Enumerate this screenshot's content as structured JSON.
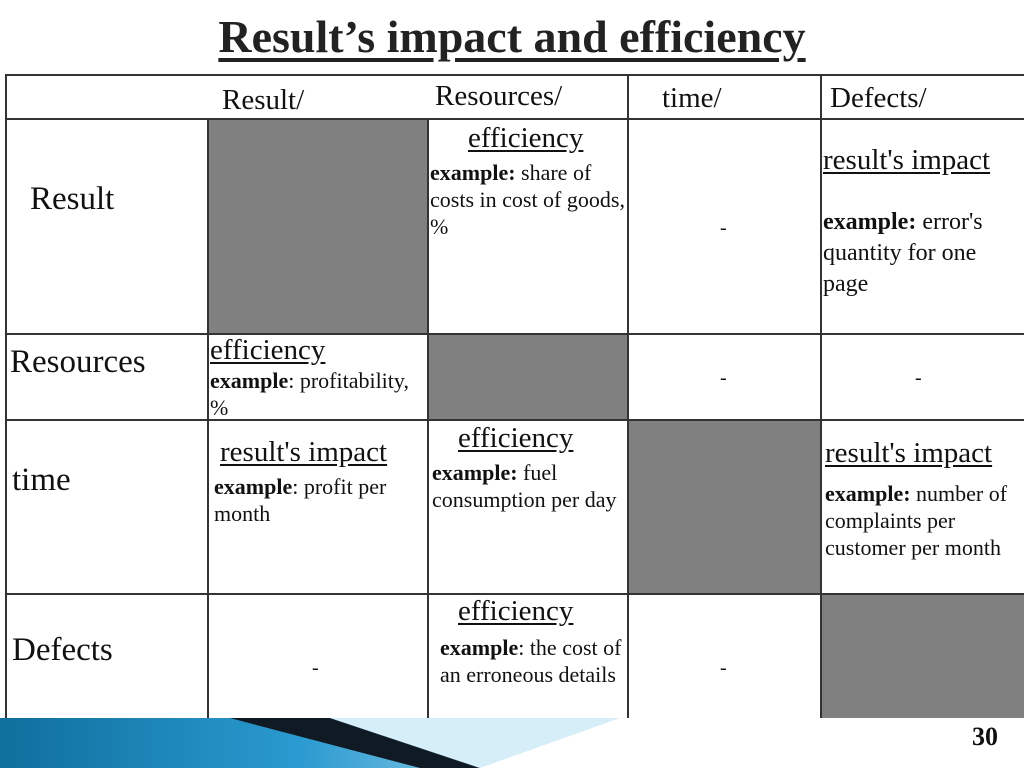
{
  "title": "Result’s impact and efficiency",
  "header": {
    "result": "Result/",
    "resources": "Resources/",
    "time": "time/",
    "defects": "Defects/"
  },
  "rows": {
    "result": "Result",
    "resources": "Resources",
    "time": "time",
    "defects": "Defects"
  },
  "cells": {
    "result_resources": {
      "kind": "efficiency",
      "ex_label": "example:",
      "ex_text": " share of costs in cost of goods, %"
    },
    "result_time": "-",
    "result_defects": {
      "kind": "result's impact",
      "ex_label": "example:",
      "ex_text": " error's quantity for one page"
    },
    "resources_result": {
      "kind": "efficiency",
      "ex_label": "example",
      "ex_text": ": profitability, %"
    },
    "resources_time": "-",
    "resources_defects": "-",
    "time_result": {
      "kind": "result's impact",
      "ex_label": "example",
      "ex_text": ": profit per month"
    },
    "time_resources": {
      "kind": "efficiency",
      "ex_label": "example:",
      "ex_text": " fuel consumption per day"
    },
    "time_defects": {
      "kind": "result's impact",
      "ex_label": "example:",
      "ex_text": " number of complaints per customer per month"
    },
    "defects_result": "-",
    "defects_resources": {
      "kind": "efficiency",
      "ex_label": "example",
      "ex_text": ": the cost of an erroneous details"
    },
    "defects_time": "-"
  },
  "page_number": "30",
  "colors": {
    "shade": "#808080",
    "band_dark": "#0f1a24",
    "band_blue": "#1f8bc0",
    "band_light": "#c9e7f4"
  }
}
